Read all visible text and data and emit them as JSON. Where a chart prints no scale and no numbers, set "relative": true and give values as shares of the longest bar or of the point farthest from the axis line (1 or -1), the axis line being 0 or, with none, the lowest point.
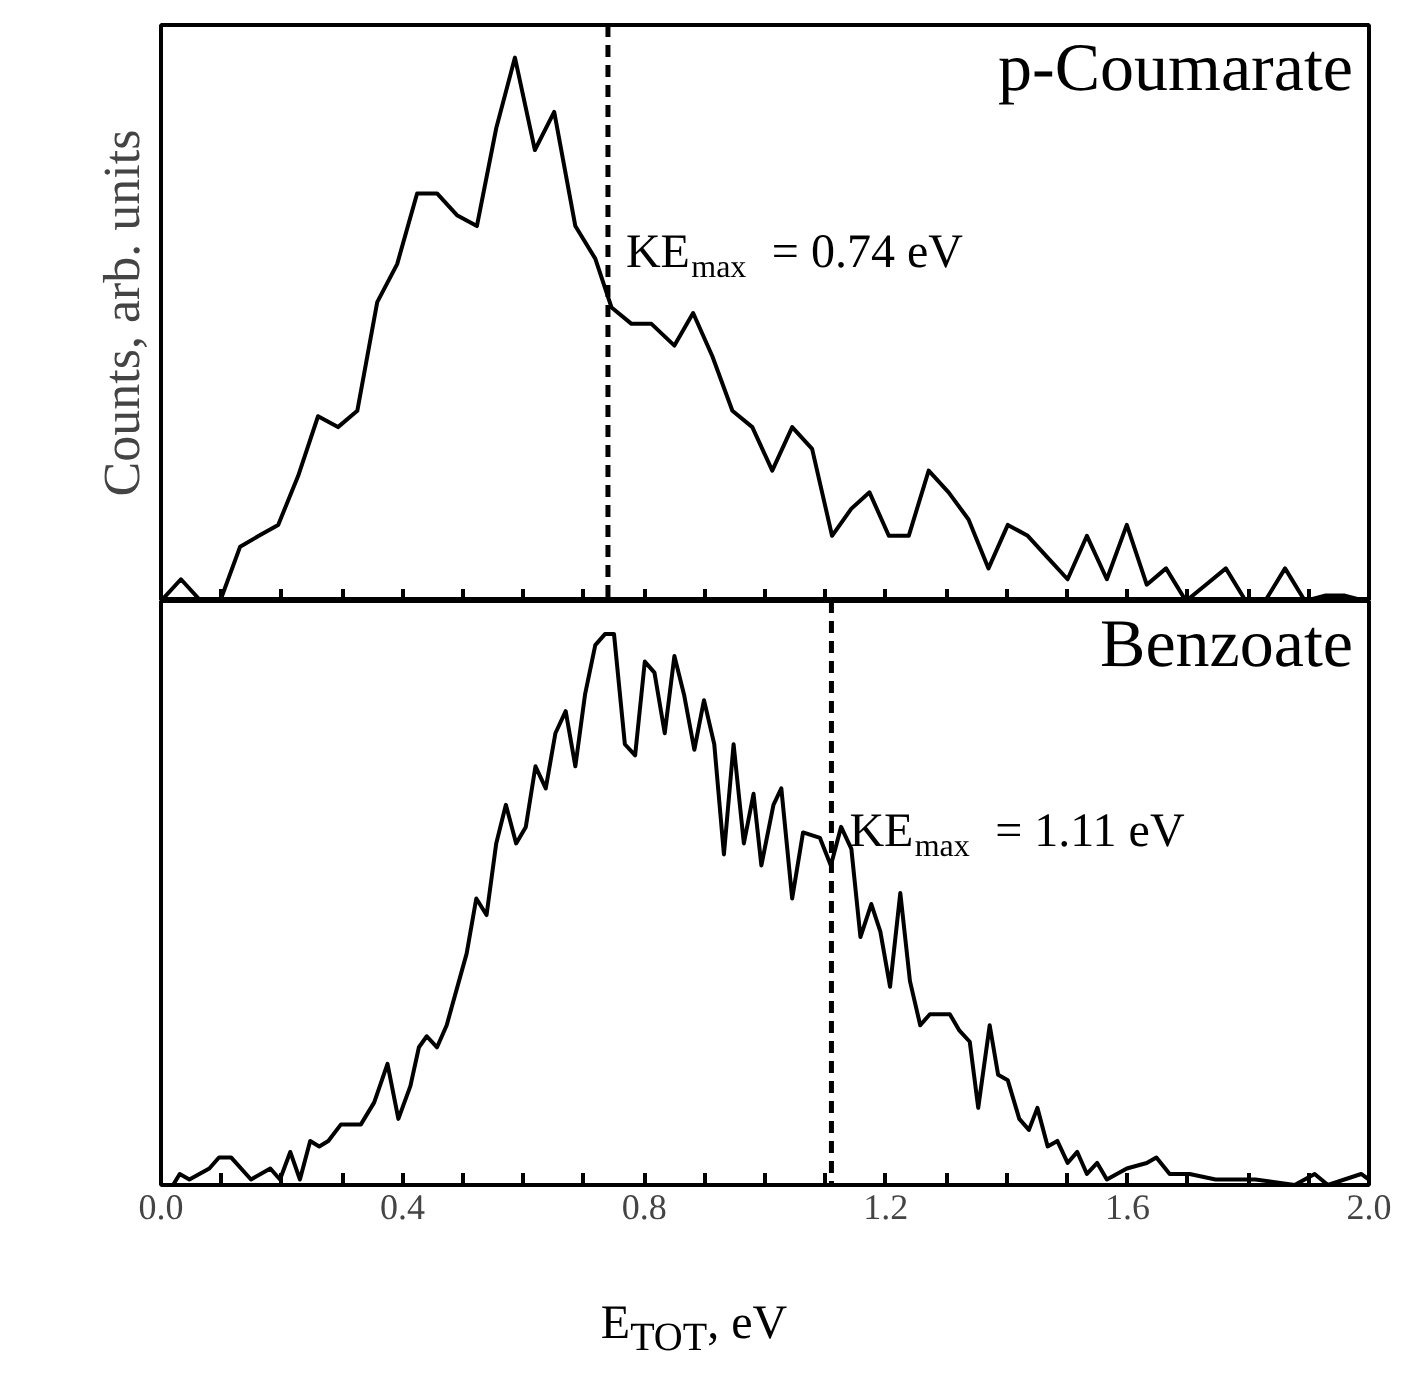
{
  "chart_data": [
    {
      "type": "line",
      "relative": true,
      "ylabel": "Counts, arb. units",
      "tick_labels": false,
      "xlim": [
        0,
        2.0
      ],
      "xticks": [
        {
          "value": 0,
          "label": null
        },
        {
          "value": 0.1,
          "label": null
        },
        {
          "value": 0.2,
          "label": null
        },
        {
          "value": 0.3,
          "label": null
        },
        {
          "value": 0.4,
          "label": null
        },
        {
          "value": 0.5,
          "label": null
        },
        {
          "value": 0.6,
          "label": null
        },
        {
          "value": 0.7,
          "label": null
        },
        {
          "value": 0.8,
          "label": null
        },
        {
          "value": 0.9,
          "label": null
        },
        {
          "value": 1.0,
          "label": null
        },
        {
          "value": 1.1,
          "label": null
        },
        {
          "value": 1.2,
          "label": null
        },
        {
          "value": 1.3,
          "label": null
        },
        {
          "value": 1.4,
          "label": null
        },
        {
          "value": 1.5,
          "label": null
        },
        {
          "value": 1.6,
          "label": null
        },
        {
          "value": 1.7,
          "label": null
        },
        {
          "value": 1.8,
          "label": null
        },
        {
          "value": 1.9,
          "label": null
        },
        {
          "value": 2.0,
          "label": null
        }
      ],
      "annotations": [
        "p-Coumarate"
      ],
      "ref_lines": [
        {
          "axis": "x",
          "value": 0.74,
          "label": "KE$_{max}$ = 0.74 eV",
          "color": "#000000",
          "line_style": "dashed"
        }
      ],
      "series": [
        {
          "color": "#000000",
          "x": [
            0.0,
            0.033,
            0.066,
            0.098,
            0.131,
            0.162,
            0.194,
            0.227,
            0.26,
            0.293,
            0.325,
            0.358,
            0.391,
            0.424,
            0.457,
            0.49,
            0.523,
            0.555,
            0.586,
            0.619,
            0.651,
            0.686,
            0.719,
            0.746,
            0.779,
            0.812,
            0.85,
            0.881,
            0.913,
            0.946,
            0.979,
            1.012,
            1.045,
            1.078,
            1.111,
            1.143,
            1.173,
            1.205,
            1.238,
            1.271,
            1.304,
            1.337,
            1.37,
            1.402,
            1.435,
            1.468,
            1.501,
            1.533,
            1.566,
            1.599,
            1.632,
            1.664,
            1.697,
            1.73,
            1.763,
            1.796,
            1.828,
            1.861,
            1.894,
            1.927,
            1.96,
            1.993
          ],
          "values": [
            0,
            0.04,
            0,
            0,
            0.1,
            0.12,
            0.14,
            0.23,
            0.34,
            0.32,
            0.35,
            0.55,
            0.62,
            0.75,
            0.75,
            0.71,
            0.69,
            0.87,
            1,
            0.83,
            0.9,
            0.69,
            0.63,
            0.54,
            0.51,
            0.51,
            0.47,
            0.53,
            0.45,
            0.35,
            0.32,
            0.24,
            0.32,
            0.28,
            0.12,
            0.17,
            0.2,
            0.12,
            0.12,
            0.24,
            0.2,
            0.15,
            0.06,
            0.14,
            0.12,
            0.08,
            0.04,
            0.12,
            0.04,
            0.14,
            0.03,
            0.06,
            0,
            0.03,
            0.06,
            0,
            0,
            0.06,
            0,
            0.01,
            0.01,
            0
          ]
        }
      ]
    },
    {
      "type": "line",
      "relative": true,
      "xlabel": "E$_{TOT}$, eV",
      "tick_labels": "x",
      "xlim": [
        0,
        2.0
      ],
      "xticks": [
        {
          "value": 0,
          "label": "0.0"
        },
        {
          "value": 0.1,
          "label": null
        },
        {
          "value": 0.2,
          "label": null
        },
        {
          "value": 0.3,
          "label": null
        },
        {
          "value": 0.4,
          "label": "0.4"
        },
        {
          "value": 0.5,
          "label": null
        },
        {
          "value": 0.6,
          "label": null
        },
        {
          "value": 0.7,
          "label": null
        },
        {
          "value": 0.8,
          "label": "0.8"
        },
        {
          "value": 0.9,
          "label": null
        },
        {
          "value": 1.0,
          "label": null
        },
        {
          "value": 1.1,
          "label": null
        },
        {
          "value": 1.2,
          "label": "1.2"
        },
        {
          "value": 1.3,
          "label": null
        },
        {
          "value": 1.4,
          "label": null
        },
        {
          "value": 1.5,
          "label": null
        },
        {
          "value": 1.6,
          "label": "1.6"
        },
        {
          "value": 1.7,
          "label": null
        },
        {
          "value": 1.8,
          "label": null
        },
        {
          "value": 1.9,
          "label": null
        },
        {
          "value": 2.0,
          "label": "2.0"
        }
      ],
      "annotations": [
        "Benzoate"
      ],
      "ref_lines": [
        {
          "axis": "x",
          "value": 1.11,
          "label": "KE$_{max}$ = 1.11 eV",
          "color": "#000000",
          "line_style": "dashed"
        }
      ],
      "series": [
        {
          "color": "#000000",
          "x": [
            0.02,
            0.031,
            0.047,
            0.08,
            0.096,
            0.116,
            0.149,
            0.181,
            0.197,
            0.214,
            0.23,
            0.247,
            0.262,
            0.277,
            0.298,
            0.315,
            0.331,
            0.353,
            0.375,
            0.393,
            0.413,
            0.427,
            0.44,
            0.457,
            0.473,
            0.506,
            0.522,
            0.539,
            0.555,
            0.571,
            0.588,
            0.604,
            0.62,
            0.637,
            0.653,
            0.67,
            0.686,
            0.702,
            0.719,
            0.735,
            0.75,
            0.768,
            0.785,
            0.801,
            0.817,
            0.834,
            0.85,
            0.866,
            0.883,
            0.899,
            0.916,
            0.932,
            0.948,
            0.965,
            0.981,
            0.994,
            1.014,
            1.027,
            1.045,
            1.063,
            1.091,
            1.109,
            1.126,
            1.143,
            1.158,
            1.176,
            1.191,
            1.207,
            1.224,
            1.24,
            1.257,
            1.273,
            1.289,
            1.306,
            1.322,
            1.339,
            1.353,
            1.372,
            1.386,
            1.402,
            1.421,
            1.437,
            1.451,
            1.468,
            1.484,
            1.501,
            1.517,
            1.533,
            1.55,
            1.566,
            1.599,
            1.632,
            1.648,
            1.67,
            1.703,
            1.746,
            1.812,
            1.877,
            1.91,
            1.932,
            1.987,
            2.0
          ],
          "values": [
            0,
            0.02,
            0.01,
            0.03,
            0.05,
            0.05,
            0.01,
            0.03,
            0.01,
            0.06,
            0.01,
            0.08,
            0.07,
            0.08,
            0.11,
            0.11,
            0.11,
            0.15,
            0.22,
            0.12,
            0.18,
            0.25,
            0.27,
            0.25,
            0.29,
            0.42,
            0.52,
            0.49,
            0.62,
            0.69,
            0.62,
            0.65,
            0.76,
            0.72,
            0.82,
            0.86,
            0.76,
            0.89,
            0.98,
            1,
            1,
            0.8,
            0.78,
            0.95,
            0.93,
            0.82,
            0.96,
            0.89,
            0.79,
            0.88,
            0.8,
            0.6,
            0.8,
            0.62,
            0.71,
            0.58,
            0.69,
            0.72,
            0.52,
            0.64,
            0.63,
            0.58,
            0.65,
            0.61,
            0.45,
            0.51,
            0.46,
            0.36,
            0.53,
            0.37,
            0.29,
            0.31,
            0.31,
            0.31,
            0.28,
            0.26,
            0.14,
            0.29,
            0.2,
            0.19,
            0.12,
            0.1,
            0.14,
            0.07,
            0.08,
            0.04,
            0.06,
            0.02,
            0.04,
            0.01,
            0.03,
            0.04,
            0.05,
            0.02,
            0.02,
            0.01,
            0.01,
            0,
            0.02,
            0,
            0.02,
            0.01
          ]
        }
      ]
    }
  ]
}
